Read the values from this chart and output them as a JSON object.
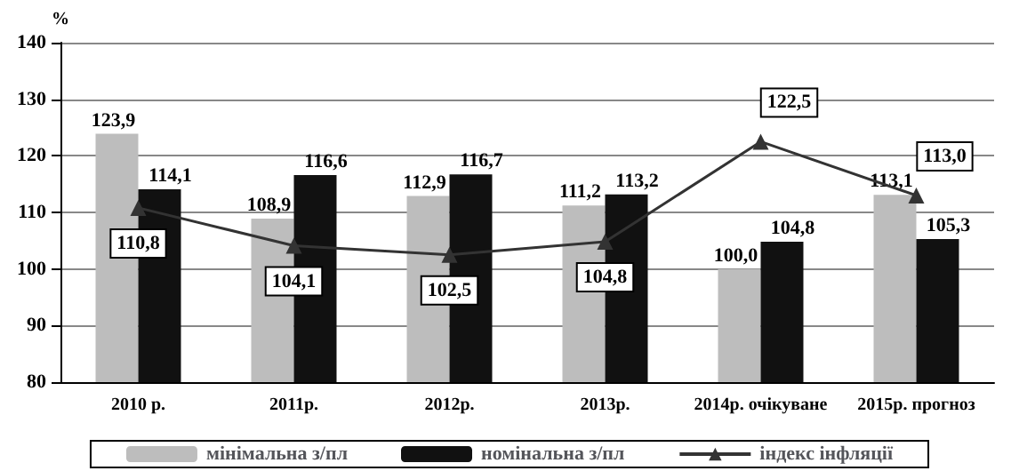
{
  "chart_data": {
    "type": "bar",
    "ylabel": "%",
    "categories": [
      "2010 р.",
      "2011р.",
      "2012р.",
      "2013р.",
      "2014р. очікуване",
      "2015р. прогноз"
    ],
    "series": [
      {
        "name": "мінімальна з/пл",
        "color": "#bdbdbd",
        "values": [
          123.9,
          108.9,
          112.9,
          111.2,
          100.0,
          113.1
        ],
        "value_labels": [
          "123,9",
          "108,9",
          "112,9",
          "111,2",
          "100,0",
          "113,1"
        ]
      },
      {
        "name": "номінальна з/пл",
        "color": "#111111",
        "values": [
          114.1,
          116.6,
          116.7,
          113.2,
          104.8,
          105.3
        ],
        "value_labels": [
          "114,1",
          "116,6",
          "116,7",
          "113,2",
          "104,8",
          "105,3"
        ]
      },
      {
        "name": "індекс інфляції",
        "type": "line",
        "color": "#333333",
        "marker": "triangle",
        "values": [
          110.8,
          104.1,
          102.5,
          104.8,
          122.5,
          113.0
        ],
        "value_labels": [
          "110,8",
          "104,1",
          "102,5",
          "104,8",
          "122,5",
          "113,0"
        ]
      }
    ],
    "ylim": [
      80,
      140
    ],
    "yticks": [
      80,
      90,
      100,
      110,
      120,
      130,
      140
    ],
    "grid": "y",
    "legend": "bottom"
  }
}
